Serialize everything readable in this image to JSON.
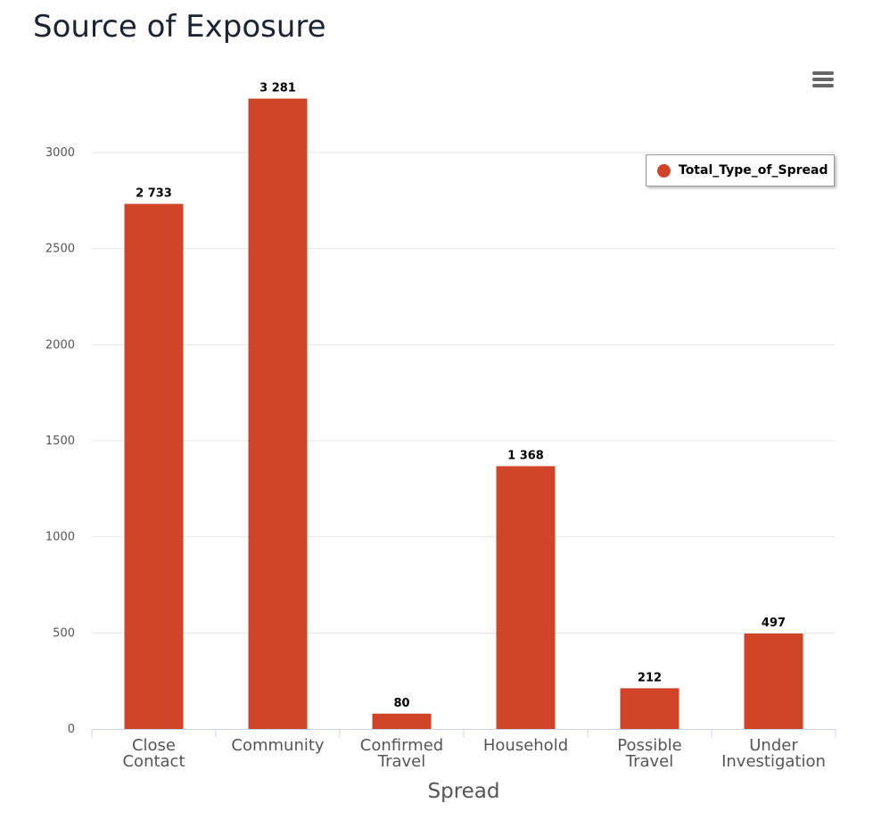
{
  "chart_data": {
    "type": "bar",
    "title": "Source of Exposure",
    "xlabel": "Spread",
    "ylabel": "",
    "categories": [
      [
        "Close",
        "Contact"
      ],
      [
        "Community"
      ],
      [
        "Confirmed",
        "Travel"
      ],
      [
        "Household"
      ],
      [
        "Possible",
        "Travel"
      ],
      [
        "Under",
        "Investigation"
      ]
    ],
    "series": [
      {
        "name": "Total_Type_of_Spread",
        "values": [
          2733,
          3281,
          80,
          1368,
          212,
          497
        ]
      }
    ],
    "data_labels": [
      "2 733",
      "3 281",
      "80",
      "1 368",
      "212",
      "497"
    ],
    "ylim": [
      0,
      3281
    ],
    "yticks": [
      0,
      500,
      1000,
      1500,
      2000,
      2500,
      3000
    ],
    "grid": true,
    "legend_placement": "top-right",
    "color": "#d04427"
  }
}
